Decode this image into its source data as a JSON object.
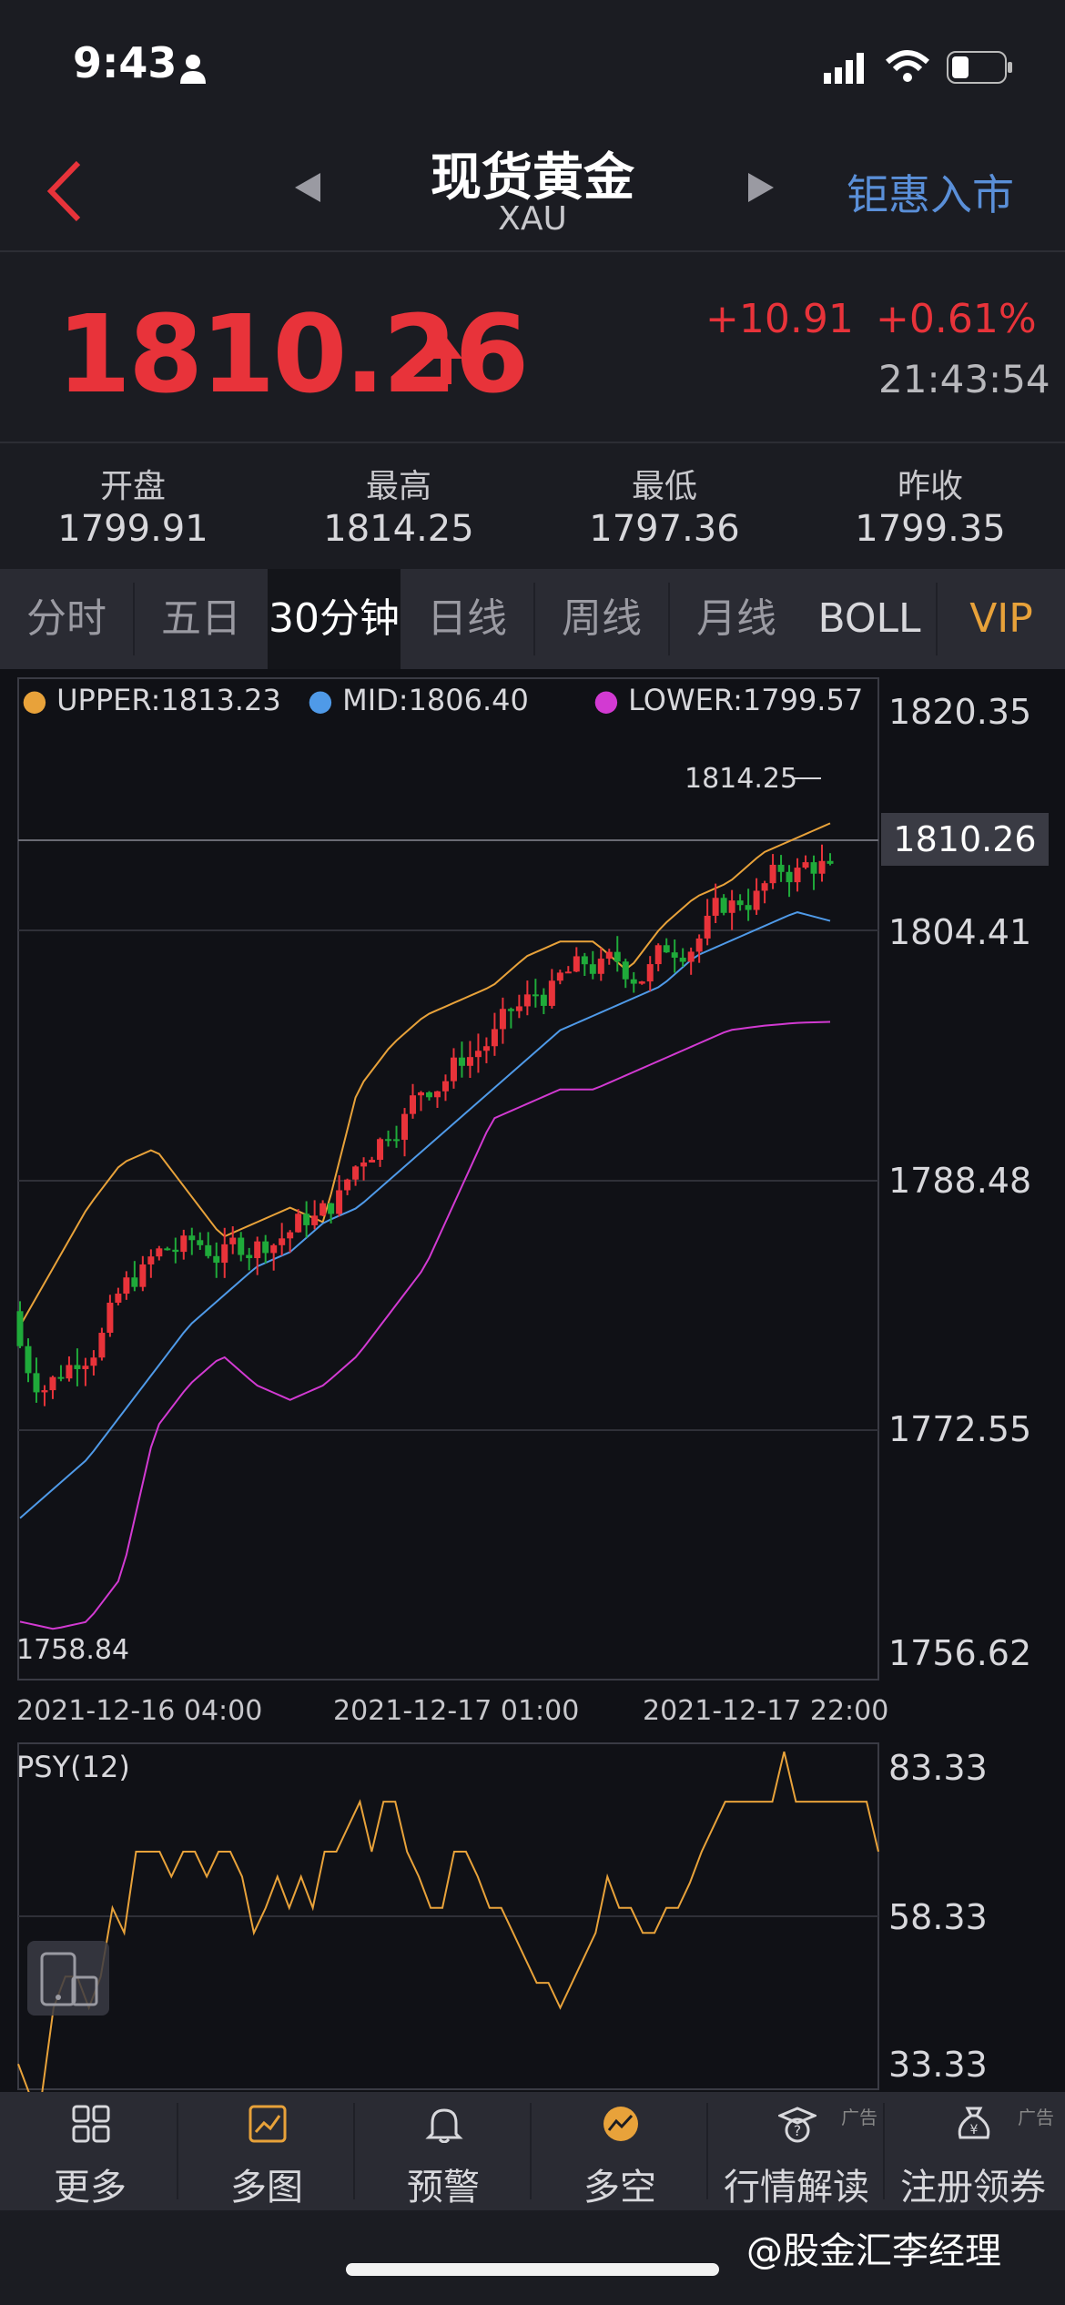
{
  "status": {
    "time": "9:43"
  },
  "nav": {
    "title": "现货黄金",
    "subtitle": "XAU",
    "right_link": "钜惠入市"
  },
  "quote": {
    "price": "1810.26",
    "change": "+10.91",
    "change_pct": "+0.61%",
    "time": "21:43:54",
    "open_label": "开盘",
    "open": "1799.91",
    "high_label": "最高",
    "high": "1814.25",
    "low_label": "最低",
    "low": "1797.36",
    "prev_label": "昨收",
    "prev": "1799.35"
  },
  "tabs": [
    "分时",
    "五日",
    "30分钟",
    "日线",
    "周线",
    "月线",
    "BOLL",
    "VIP"
  ],
  "active_tab": "30分钟",
  "main_chart": {
    "legend": {
      "upper": "UPPER:1813.23",
      "mid": "MID:1806.40",
      "lower": "LOWER:1799.57"
    },
    "y_labels": [
      "1820.35",
      "1804.41",
      "1788.48",
      "1772.55",
      "1756.62"
    ],
    "current_price_label": "1810.26",
    "high_marker": "1814.25",
    "low_marker": "1758.84",
    "x_labels": [
      "2021-12-16 04:00",
      "2021-12-17 01:00",
      "2021-12-17 22:00"
    ],
    "colors": {
      "up": "#e8333a",
      "down": "#1faa3a",
      "upper": "#e8a23a",
      "mid": "#4f9ae8",
      "lower": "#d23ad2"
    }
  },
  "psy_chart": {
    "label": "PSY(12)",
    "y_labels": [
      "83.33",
      "58.33",
      "33.33"
    ],
    "color": "#e8a23a"
  },
  "bottom_bar": [
    {
      "label": "更多",
      "icon": "grid-icon"
    },
    {
      "label": "多图",
      "icon": "multi-chart-icon"
    },
    {
      "label": "预警",
      "icon": "bell-icon"
    },
    {
      "label": "多空",
      "icon": "bull-bear-icon"
    },
    {
      "label": "行情解读",
      "icon": "question-hat-icon",
      "ad": "广告"
    },
    {
      "label": "注册领券",
      "icon": "money-bag-icon",
      "ad": "广告"
    }
  ],
  "watermark": "@股金汇李经理"
}
